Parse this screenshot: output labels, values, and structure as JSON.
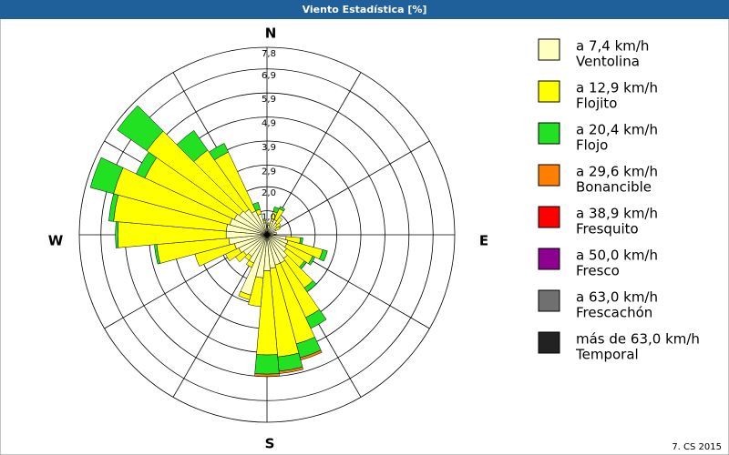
{
  "chart_data": {
    "type": "windrose",
    "title": "Viento Estadística [%]",
    "footer": "7. CS 2015",
    "compass": [
      "N",
      "E",
      "S",
      "W"
    ],
    "x": [
      0,
      10,
      20,
      30,
      40,
      50,
      60,
      70,
      80,
      90,
      100,
      110,
      120,
      130,
      140,
      150,
      160,
      170,
      180,
      190,
      200,
      210,
      220,
      230,
      240,
      250,
      260,
      270,
      280,
      290,
      300,
      310,
      320,
      330,
      340,
      350
    ],
    "rlim": [
      0,
      7.8
    ],
    "rticks": [
      {
        "value": 1.0,
        "label": "1,0"
      },
      {
        "value": 2.0,
        "label": "2,0"
      },
      {
        "value": 2.9,
        "label": "2,9"
      },
      {
        "value": 3.9,
        "label": "3,9"
      },
      {
        "value": 4.9,
        "label": "4,9"
      },
      {
        "value": 5.9,
        "label": "5,9"
      },
      {
        "value": 6.9,
        "label": "6,9"
      },
      {
        "value": 7.8,
        "label": "7,8"
      }
    ],
    "series": [
      {
        "name": "a 7,4 km/h",
        "description": "Ventolina",
        "color": "#ffffc0",
        "values": [
          0.3,
          0.4,
          0.6,
          0.7,
          0.6,
          0.5,
          0.4,
          0.3,
          0.4,
          0.3,
          0.8,
          0.9,
          0.9,
          1.0,
          1.2,
          1.3,
          1.3,
          1.4,
          1.5,
          1.8,
          2.6,
          1.3,
          1.1,
          1.2,
          1.3,
          1.4,
          1.6,
          1.7,
          1.7,
          1.6,
          1.5,
          1.4,
          1.3,
          1.1,
          0.9,
          0.5
        ]
      },
      {
        "name": "a 12,9 km/h",
        "description": "Flojito",
        "color": "#ffff00",
        "values": [
          0,
          0.1,
          0.4,
          0.5,
          0.3,
          0.2,
          0.2,
          0,
          0,
          0,
          0.6,
          1.5,
          1.2,
          0.9,
          1.5,
          2.5,
          3.4,
          3.7,
          3.5,
          1.2,
          0.2,
          0.2,
          0.2,
          0.4,
          0.6,
          1.7,
          3.0,
          4.5,
          4.7,
          5.0,
          4.1,
          4.7,
          3.0,
          2.7,
          0.2,
          0.1
        ]
      },
      {
        "name": "a 20,4 km/h",
        "description": "Flojo",
        "color": "#22e022",
        "values": [
          0,
          0,
          0.2,
          0.1,
          0,
          0,
          0,
          0,
          0,
          0,
          0.1,
          0.2,
          0.1,
          0.1,
          0.2,
          0.5,
          0.6,
          0.6,
          0.8,
          0,
          0,
          0,
          0,
          0,
          0,
          0,
          0.1,
          0.1,
          0.2,
          1.0,
          0.4,
          1.5,
          1.0,
          0.4,
          0.3,
          0
        ]
      },
      {
        "name": "a 29,6 km/h",
        "description": "Bonancible",
        "color": "#ff8000",
        "values": [
          0,
          0,
          0,
          0,
          0,
          0,
          0,
          0,
          0,
          0,
          0,
          0,
          0,
          0,
          0,
          0,
          0.1,
          0.1,
          0.1,
          0,
          0,
          0,
          0,
          0,
          0,
          0,
          0,
          0,
          0,
          0,
          0,
          0,
          0,
          0,
          0,
          0
        ]
      },
      {
        "name": "a 38,9 km/h",
        "description": "Fresquito",
        "color": "#ff0000",
        "values": [
          0,
          0,
          0,
          0,
          0,
          0,
          0,
          0,
          0,
          0,
          0,
          0,
          0,
          0,
          0,
          0,
          0,
          0,
          0,
          0,
          0,
          0,
          0,
          0,
          0,
          0,
          0,
          0,
          0,
          0,
          0,
          0,
          0,
          0,
          0,
          0
        ]
      },
      {
        "name": "a 50,0 km/h",
        "description": "Fresco",
        "color": "#8e0090",
        "values": [
          0,
          0,
          0,
          0,
          0,
          0,
          0,
          0,
          0,
          0,
          0,
          0,
          0,
          0,
          0,
          0,
          0,
          0,
          0,
          0,
          0,
          0,
          0,
          0,
          0,
          0,
          0,
          0,
          0,
          0,
          0,
          0,
          0,
          0,
          0,
          0
        ]
      },
      {
        "name": "a 63,0 km/h",
        "description": "Frescachón",
        "color": "#707070",
        "values": [
          0,
          0,
          0,
          0,
          0,
          0,
          0,
          0,
          0,
          0,
          0,
          0,
          0,
          0,
          0,
          0,
          0,
          0,
          0,
          0,
          0,
          0,
          0,
          0,
          0,
          0,
          0,
          0,
          0,
          0,
          0,
          0,
          0,
          0,
          0,
          0
        ]
      },
      {
        "name": "más de 63,0 km/h",
        "description": "Temporal",
        "color": "#222222",
        "values": [
          0,
          0,
          0,
          0,
          0,
          0,
          0,
          0,
          0,
          0,
          0,
          0,
          0,
          0,
          0,
          0,
          0,
          0,
          0,
          0,
          0,
          0,
          0,
          0,
          0,
          0,
          0,
          0,
          0,
          0,
          0,
          0,
          0,
          0,
          0,
          0
        ]
      }
    ]
  }
}
